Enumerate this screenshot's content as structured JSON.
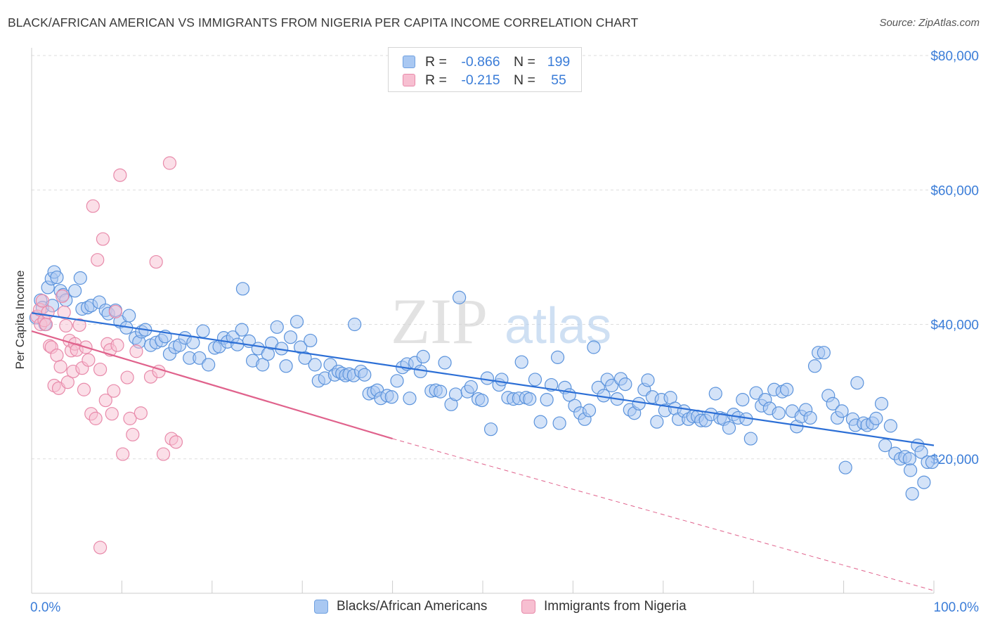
{
  "header": {
    "title": "BLACK/AFRICAN AMERICAN VS IMMIGRANTS FROM NIGERIA PER CAPITA INCOME CORRELATION CHART",
    "source": "Source: ZipAtlas.com"
  },
  "watermark": {
    "zip": "ZIP",
    "atlas": "atlas"
  },
  "legend": {
    "rows": [
      {
        "r_label": "R =",
        "r_value": "-0.866",
        "n_label": "N =",
        "n_value": "199",
        "color": "#a9c8f2",
        "border": "#6fa0e0"
      },
      {
        "r_label": "R =",
        "r_value": "-0.215",
        "n_label": "N =",
        "n_value": "55",
        "color": "#f7bfd1",
        "border": "#e88aaa"
      }
    ]
  },
  "bottom_legend": {
    "series1": "Blacks/African Americans",
    "series2": "Immigrants from Nigeria"
  },
  "colors": {
    "blue_fill": "#a9c8f2",
    "blue_stroke": "#5b93dc",
    "blue_line": "#2c6fd6",
    "pink_fill": "#f7bfd1",
    "pink_stroke": "#e88aaa",
    "pink_line": "#e0628c",
    "grid": "#dddddd",
    "tick_text": "#3b7dd8"
  },
  "chart_data": {
    "type": "scatter",
    "title": "BLACK/AFRICAN AMERICAN VS IMMIGRANTS FROM NIGERIA PER CAPITA INCOME CORRELATION CHART",
    "xlabel": "",
    "ylabel": "Per Capita Income",
    "xlim": [
      0,
      100
    ],
    "ylim": [
      0,
      80000
    ],
    "x_tick_labels": [
      "0.0%",
      "100.0%"
    ],
    "y_ticks": [
      20000,
      40000,
      60000,
      80000
    ],
    "y_tick_labels": [
      "$20,000",
      "$40,000",
      "$60,000",
      "$80,000"
    ],
    "series": [
      {
        "name": "Blacks/African Americans",
        "r": -0.866,
        "n": 199,
        "trend": {
          "x0": 0,
          "y0": 41700,
          "x1": 100,
          "y1": 22000
        },
        "points": [
          [
            0.5,
            41000
          ],
          [
            1.0,
            43600
          ],
          [
            1.2,
            42500
          ],
          [
            1.5,
            40000
          ],
          [
            1.8,
            45500
          ],
          [
            2.2,
            46800
          ],
          [
            2.3,
            42800
          ],
          [
            2.5,
            47800
          ],
          [
            2.8,
            47000
          ],
          [
            3.2,
            45000
          ],
          [
            3.5,
            44400
          ],
          [
            3.8,
            43600
          ],
          [
            4.8,
            45000
          ],
          [
            5.4,
            46900
          ],
          [
            5.6,
            42300
          ],
          [
            6.2,
            42500
          ],
          [
            6.6,
            42800
          ],
          [
            7.5,
            43300
          ],
          [
            8.2,
            42100
          ],
          [
            8.5,
            41600
          ],
          [
            9.3,
            42100
          ],
          [
            9.8,
            40400
          ],
          [
            10.5,
            39500
          ],
          [
            10.8,
            41300
          ],
          [
            11.5,
            38000
          ],
          [
            11.9,
            37400
          ],
          [
            12.2,
            38900
          ],
          [
            12.6,
            39200
          ],
          [
            13.2,
            36900
          ],
          [
            13.8,
            37300
          ],
          [
            14.4,
            37600
          ],
          [
            14.8,
            38200
          ],
          [
            15.3,
            35600
          ],
          [
            15.9,
            36600
          ],
          [
            16.4,
            36900
          ],
          [
            17.0,
            38000
          ],
          [
            17.5,
            35000
          ],
          [
            17.9,
            37300
          ],
          [
            18.6,
            35000
          ],
          [
            19.0,
            39000
          ],
          [
            19.6,
            34000
          ],
          [
            20.3,
            36500
          ],
          [
            20.8,
            36700
          ],
          [
            21.3,
            38000
          ],
          [
            21.7,
            37400
          ],
          [
            22.3,
            38100
          ],
          [
            22.8,
            37000
          ],
          [
            23.3,
            39200
          ],
          [
            23.4,
            45300
          ],
          [
            24.1,
            37500
          ],
          [
            24.5,
            34600
          ],
          [
            25.1,
            36400
          ],
          [
            25.6,
            34000
          ],
          [
            26.2,
            35600
          ],
          [
            26.6,
            37200
          ],
          [
            27.2,
            39600
          ],
          [
            27.7,
            36400
          ],
          [
            28.2,
            33800
          ],
          [
            28.7,
            38100
          ],
          [
            29.4,
            40400
          ],
          [
            29.8,
            36600
          ],
          [
            30.3,
            35000
          ],
          [
            30.9,
            37600
          ],
          [
            31.4,
            34000
          ],
          [
            31.8,
            31600
          ],
          [
            32.5,
            32000
          ],
          [
            33.1,
            34000
          ],
          [
            33.6,
            32500
          ],
          [
            34.0,
            33000
          ],
          [
            34.4,
            32700
          ],
          [
            34.8,
            32400
          ],
          [
            35.2,
            32600
          ],
          [
            35.7,
            32400
          ],
          [
            35.8,
            40000
          ],
          [
            36.5,
            33000
          ],
          [
            36.9,
            32500
          ],
          [
            37.4,
            29700
          ],
          [
            37.9,
            29900
          ],
          [
            38.3,
            30200
          ],
          [
            38.7,
            29000
          ],
          [
            39.4,
            29400
          ],
          [
            39.9,
            29200
          ],
          [
            40.5,
            31600
          ],
          [
            41.1,
            33600
          ],
          [
            41.6,
            34100
          ],
          [
            41.9,
            29000
          ],
          [
            42.5,
            34300
          ],
          [
            43.1,
            33000
          ],
          [
            43.4,
            35200
          ],
          [
            44.3,
            30100
          ],
          [
            44.8,
            30200
          ],
          [
            45.3,
            30000
          ],
          [
            45.8,
            34300
          ],
          [
            46.5,
            28100
          ],
          [
            47.0,
            29600
          ],
          [
            47.4,
            44000
          ],
          [
            48.3,
            30000
          ],
          [
            48.7,
            30700
          ],
          [
            49.5,
            28900
          ],
          [
            49.9,
            28700
          ],
          [
            50.5,
            32000
          ],
          [
            50.9,
            24400
          ],
          [
            51.8,
            31000
          ],
          [
            52.1,
            31800
          ],
          [
            52.8,
            29100
          ],
          [
            53.4,
            28900
          ],
          [
            54.0,
            29000
          ],
          [
            54.3,
            34400
          ],
          [
            54.8,
            29100
          ],
          [
            55.2,
            28900
          ],
          [
            55.8,
            31800
          ],
          [
            56.4,
            25500
          ],
          [
            57.1,
            28800
          ],
          [
            57.6,
            31000
          ],
          [
            58.3,
            35100
          ],
          [
            58.5,
            25300
          ],
          [
            59.1,
            30600
          ],
          [
            59.6,
            29500
          ],
          [
            60.2,
            27900
          ],
          [
            60.8,
            26800
          ],
          [
            61.3,
            25900
          ],
          [
            61.8,
            27200
          ],
          [
            62.3,
            36600
          ],
          [
            62.8,
            30600
          ],
          [
            63.4,
            29400
          ],
          [
            63.8,
            31800
          ],
          [
            64.3,
            30900
          ],
          [
            64.9,
            28900
          ],
          [
            65.3,
            31900
          ],
          [
            65.8,
            31100
          ],
          [
            66.3,
            27300
          ],
          [
            66.8,
            26800
          ],
          [
            67.3,
            28200
          ],
          [
            67.9,
            30300
          ],
          [
            68.3,
            31700
          ],
          [
            68.8,
            29200
          ],
          [
            69.3,
            25500
          ],
          [
            69.8,
            28800
          ],
          [
            70.2,
            27200
          ],
          [
            70.8,
            29100
          ],
          [
            71.3,
            27500
          ],
          [
            71.7,
            25900
          ],
          [
            72.3,
            27100
          ],
          [
            72.8,
            25900
          ],
          [
            73.3,
            26300
          ],
          [
            73.8,
            26300
          ],
          [
            74.2,
            25700
          ],
          [
            74.7,
            25700
          ],
          [
            75.3,
            26600
          ],
          [
            75.8,
            29700
          ],
          [
            76.3,
            26100
          ],
          [
            76.7,
            25900
          ],
          [
            77.3,
            24600
          ],
          [
            77.8,
            26600
          ],
          [
            78.3,
            26100
          ],
          [
            78.8,
            28800
          ],
          [
            79.2,
            25900
          ],
          [
            79.7,
            23000
          ],
          [
            80.3,
            29800
          ],
          [
            80.9,
            27900
          ],
          [
            81.3,
            28800
          ],
          [
            81.8,
            27500
          ],
          [
            82.3,
            30300
          ],
          [
            82.8,
            26800
          ],
          [
            83.2,
            30000
          ],
          [
            83.7,
            30300
          ],
          [
            84.3,
            27100
          ],
          [
            84.8,
            24800
          ],
          [
            85.3,
            26300
          ],
          [
            85.8,
            27300
          ],
          [
            86.3,
            26100
          ],
          [
            86.8,
            33800
          ],
          [
            87.2,
            35800
          ],
          [
            87.8,
            35800
          ],
          [
            88.3,
            29400
          ],
          [
            88.8,
            28200
          ],
          [
            89.3,
            26100
          ],
          [
            89.8,
            27100
          ],
          [
            90.2,
            18700
          ],
          [
            91.0,
            25900
          ],
          [
            91.3,
            25000
          ],
          [
            91.5,
            31300
          ],
          [
            92.2,
            25300
          ],
          [
            92.6,
            25000
          ],
          [
            93.2,
            25300
          ],
          [
            93.6,
            26000
          ],
          [
            94.2,
            28200
          ],
          [
            94.6,
            22000
          ],
          [
            95.2,
            24900
          ],
          [
            95.7,
            20800
          ],
          [
            96.3,
            20000
          ],
          [
            96.8,
            20300
          ],
          [
            97.3,
            20000
          ],
          [
            97.4,
            18300
          ],
          [
            97.6,
            14800
          ],
          [
            98.2,
            22000
          ],
          [
            98.6,
            21000
          ],
          [
            98.9,
            16500
          ],
          [
            99.3,
            19500
          ],
          [
            99.8,
            19500
          ]
        ]
      },
      {
        "name": "Immigrants from Nigeria",
        "r": -0.215,
        "n": 55,
        "trend": {
          "x0": 0,
          "y0": 39000,
          "x1": 40,
          "y1": 23000
        },
        "trend_dashed": {
          "x0": 40,
          "y0": 23000,
          "x1": 100,
          "y1": 400
        },
        "points": [
          [
            0.6,
            41200
          ],
          [
            0.9,
            42200
          ],
          [
            1.0,
            40000
          ],
          [
            1.2,
            43500
          ],
          [
            1.4,
            40600
          ],
          [
            1.6,
            40000
          ],
          [
            1.8,
            41800
          ],
          [
            2.0,
            36800
          ],
          [
            2.2,
            36600
          ],
          [
            2.5,
            30900
          ],
          [
            2.8,
            35400
          ],
          [
            3.0,
            30500
          ],
          [
            3.2,
            33700
          ],
          [
            3.4,
            44200
          ],
          [
            3.6,
            41800
          ],
          [
            3.8,
            39800
          ],
          [
            4.0,
            31400
          ],
          [
            4.2,
            37600
          ],
          [
            4.4,
            36100
          ],
          [
            4.6,
            33000
          ],
          [
            4.8,
            37100
          ],
          [
            5.0,
            36200
          ],
          [
            5.3,
            39900
          ],
          [
            5.6,
            33500
          ],
          [
            5.8,
            30300
          ],
          [
            6.0,
            36600
          ],
          [
            6.3,
            34700
          ],
          [
            6.6,
            26700
          ],
          [
            6.8,
            57600
          ],
          [
            7.1,
            26000
          ],
          [
            7.3,
            49600
          ],
          [
            7.6,
            33300
          ],
          [
            7.9,
            52700
          ],
          [
            8.2,
            28700
          ],
          [
            8.4,
            37100
          ],
          [
            8.7,
            36200
          ],
          [
            8.9,
            26700
          ],
          [
            9.1,
            30100
          ],
          [
            9.3,
            41900
          ],
          [
            9.5,
            36900
          ],
          [
            9.8,
            62200
          ],
          [
            10.1,
            20700
          ],
          [
            10.6,
            32100
          ],
          [
            10.9,
            26000
          ],
          [
            11.2,
            23600
          ],
          [
            11.6,
            36000
          ],
          [
            12.1,
            26800
          ],
          [
            13.2,
            32200
          ],
          [
            13.8,
            49300
          ],
          [
            14.1,
            33000
          ],
          [
            14.6,
            20700
          ],
          [
            15.3,
            64000
          ],
          [
            15.5,
            23000
          ],
          [
            16.0,
            22500
          ],
          [
            7.6,
            6800
          ]
        ]
      }
    ]
  }
}
